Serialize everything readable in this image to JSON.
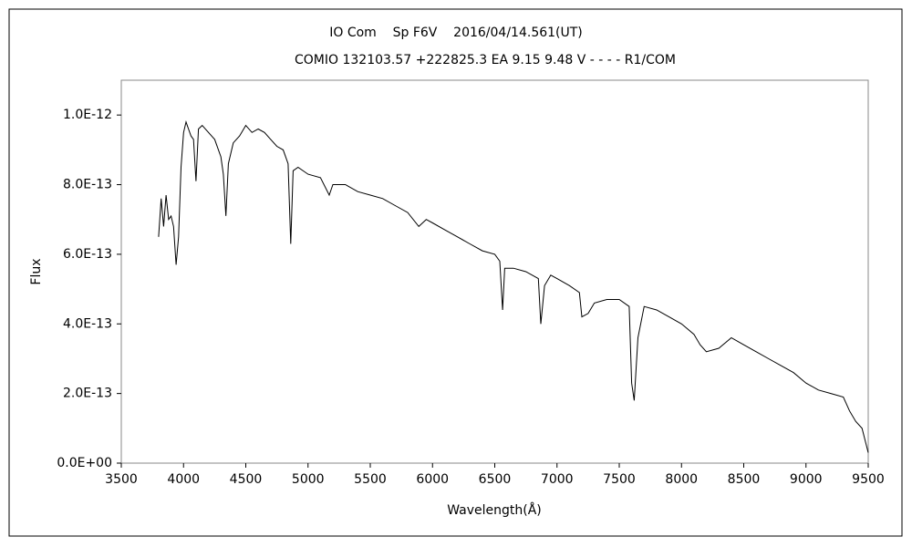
{
  "chart_data": {
    "type": "line",
    "title": "IO Com    Sp F6V    2016/04/14.561(UT)",
    "subtitle": "COMIO 132103.57 +222825.3 EA 9.15 9.48 V - - - - R1/COM",
    "x_label": "Wavelength(Å)",
    "y_label": "Flux",
    "xlim": [
      3500,
      9500
    ],
    "xticks": [
      3500,
      4000,
      4500,
      5000,
      5500,
      6000,
      6500,
      7000,
      7500,
      8000,
      8500,
      9000,
      9500
    ],
    "ylim": [
      0,
      1.1e-12
    ],
    "yticks": [
      {
        "value": 0,
        "label": "0.0E+00"
      },
      {
        "value": 2e-13,
        "label": "2.0E-13"
      },
      {
        "value": 4e-13,
        "label": "4.0E-13"
      },
      {
        "value": 6e-13,
        "label": "6.0E-13"
      },
      {
        "value": 8e-13,
        "label": "8.0E-13"
      },
      {
        "value": 1e-12,
        "label": "1.0E-12"
      }
    ],
    "color": "#000000",
    "x": [
      3800,
      3820,
      3840,
      3860,
      3880,
      3900,
      3920,
      3940,
      3960,
      3980,
      4000,
      4020,
      4040,
      4060,
      4080,
      4100,
      4120,
      4150,
      4200,
      4250,
      4300,
      4320,
      4340,
      4360,
      4400,
      4450,
      4500,
      4550,
      4600,
      4650,
      4700,
      4750,
      4800,
      4840,
      4861,
      4880,
      4920,
      5000,
      5100,
      5170,
      5200,
      5300,
      5400,
      5500,
      5600,
      5700,
      5800,
      5890,
      5950,
      6000,
      6100,
      6200,
      6300,
      6400,
      6500,
      6540,
      6563,
      6580,
      6650,
      6750,
      6850,
      6870,
      6900,
      6950,
      7000,
      7100,
      7180,
      7200,
      7250,
      7300,
      7400,
      7500,
      7580,
      7600,
      7620,
      7650,
      7700,
      7800,
      7900,
      8000,
      8100,
      8150,
      8200,
      8300,
      8400,
      8500,
      8600,
      8700,
      8800,
      8900,
      9000,
      9100,
      9200,
      9300,
      9350,
      9400,
      9450,
      9500
    ],
    "values": [
      6.5e-13,
      7.6e-13,
      6.8e-13,
      7.7e-13,
      7e-13,
      7.1e-13,
      6.8e-13,
      5.7e-13,
      6.5e-13,
      8.5e-13,
      9.5e-13,
      9.8e-13,
      9.6e-13,
      9.4e-13,
      9.3e-13,
      8.1e-13,
      9.6e-13,
      9.7e-13,
      9.5e-13,
      9.3e-13,
      8.8e-13,
      8.3e-13,
      7.1e-13,
      8.6e-13,
      9.2e-13,
      9.4e-13,
      9.7e-13,
      9.5e-13,
      9.6e-13,
      9.5e-13,
      9.3e-13,
      9.1e-13,
      9e-13,
      8.6e-13,
      6.3e-13,
      8.4e-13,
      8.5e-13,
      8.3e-13,
      8.2e-13,
      7.7e-13,
      8e-13,
      8e-13,
      7.8e-13,
      7.7e-13,
      7.6e-13,
      7.4e-13,
      7.2e-13,
      6.8e-13,
      7e-13,
      6.9e-13,
      6.7e-13,
      6.5e-13,
      6.3e-13,
      6.1e-13,
      6e-13,
      5.8e-13,
      4.4e-13,
      5.6e-13,
      5.6e-13,
      5.5e-13,
      5.3e-13,
      4e-13,
      5.1e-13,
      5.4e-13,
      5.3e-13,
      5.1e-13,
      4.9e-13,
      4.2e-13,
      4.3e-13,
      4.6e-13,
      4.7e-13,
      4.7e-13,
      4.5e-13,
      2.3e-13,
      1.8e-13,
      3.6e-13,
      4.5e-13,
      4.4e-13,
      4.2e-13,
      4e-13,
      3.7e-13,
      3.4e-13,
      3.2e-13,
      3.3e-13,
      3.6e-13,
      3.4e-13,
      3.2e-13,
      3e-13,
      2.8e-13,
      2.6e-13,
      2.3e-13,
      2.1e-13,
      2e-13,
      1.9e-13,
      1.5e-13,
      1.2e-13,
      1e-13,
      3e-14
    ]
  }
}
